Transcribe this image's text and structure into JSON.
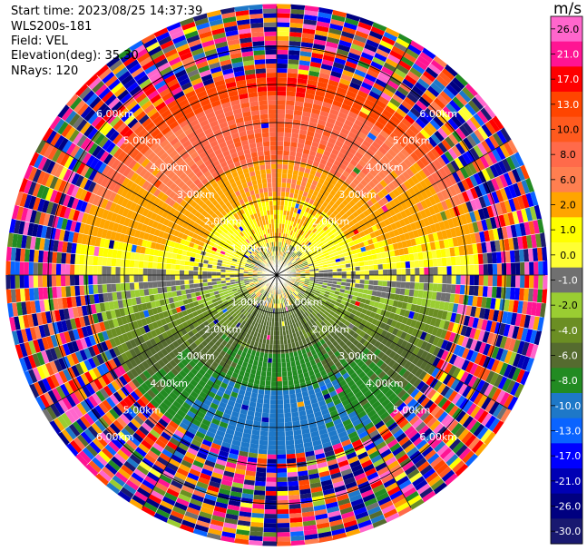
{
  "header": {
    "start_time": "Start time: 2023/08/25 14:37:39",
    "instrument": "WLS200s-181",
    "field": "Field: VEL",
    "elevation": "Elevation(deg): 35.30",
    "nrays": "NRays: 120"
  },
  "chart_data": {
    "type": "heatmap",
    "projection": "polar-ppi",
    "n_rays": 120,
    "range_rings_km": [
      1.0,
      2.0,
      3.0,
      4.0,
      5.0,
      6.0
    ],
    "range_ring_labels": [
      "1.00km",
      "2.00km",
      "3.00km",
      "4.00km",
      "5.00km",
      "6.00km"
    ],
    "max_range_km": 7.05,
    "spoke_angles_deg": [
      0,
      30,
      60,
      90,
      120,
      150,
      180,
      210,
      240,
      270,
      300,
      330
    ],
    "field": "VEL",
    "velocity_structure": [
      {
        "from_km": 0.0,
        "to_km": 0.8,
        "north": "mixed",
        "south": "mixed"
      },
      {
        "from_km": 0.8,
        "to_km": 2.0,
        "north": 2.0,
        "south": -5.0
      },
      {
        "from_km": 2.0,
        "to_km": 3.0,
        "north": 6.0,
        "south": -7.0
      },
      {
        "from_km": 3.0,
        "to_km": 4.6,
        "north": 10.0,
        "south": -9.0
      },
      {
        "from_km": 4.6,
        "to_km": 5.3,
        "north": 17.0,
        "south": "noise"
      },
      {
        "from_km": 5.3,
        "to_km": 7.05,
        "north": "noise",
        "south": "noise"
      }
    ],
    "colorbar": {
      "unit": "m/s",
      "vmin": -30.0,
      "vmax": 30.0,
      "ticks": [
        "26.0",
        "21.0",
        "17.0",
        "13.0",
        "10.0",
        "8.0",
        "6.0",
        "2.0",
        "1.0",
        "0.0",
        "-1.0",
        "-2.0",
        "-4.0",
        "-6.0",
        "-8.0",
        "-10.0",
        "-13.0",
        "-17.0",
        "-21.0",
        "-26.0",
        "-30.0"
      ],
      "bins": [
        {
          "min": 26,
          "max": 30,
          "color": "#ff66cc"
        },
        {
          "min": 21,
          "max": 26,
          "color": "#ff1493"
        },
        {
          "min": 17,
          "max": 21,
          "color": "#ff0000"
        },
        {
          "min": 13,
          "max": 17,
          "color": "#ff4500"
        },
        {
          "min": 10,
          "max": 13,
          "color": "#ff5a1e"
        },
        {
          "min": 8,
          "max": 10,
          "color": "#ff6a4a"
        },
        {
          "min": 6,
          "max": 8,
          "color": "#ff7f50"
        },
        {
          "min": 2,
          "max": 6,
          "color": "#ffa500"
        },
        {
          "min": 1,
          "max": 2,
          "color": "#ffff00"
        },
        {
          "min": 0,
          "max": 1,
          "color": "#ffff33"
        },
        {
          "min": -1,
          "max": 0,
          "color": "#707070"
        },
        {
          "min": -2,
          "max": -1,
          "color": "#9acd32"
        },
        {
          "min": -4,
          "max": -2,
          "color": "#6b8e23"
        },
        {
          "min": -6,
          "max": -4,
          "color": "#556b2f"
        },
        {
          "min": -8,
          "max": -6,
          "color": "#228b22"
        },
        {
          "min": -10,
          "max": -8,
          "color": "#1e78c8"
        },
        {
          "min": -13,
          "max": -10,
          "color": "#0a64ff"
        },
        {
          "min": -17,
          "max": -13,
          "color": "#0000ff"
        },
        {
          "min": -21,
          "max": -17,
          "color": "#0000b4"
        },
        {
          "min": -26,
          "max": -21,
          "color": "#000080"
        },
        {
          "min": -30,
          "max": -26,
          "color": "#191970"
        }
      ]
    }
  }
}
